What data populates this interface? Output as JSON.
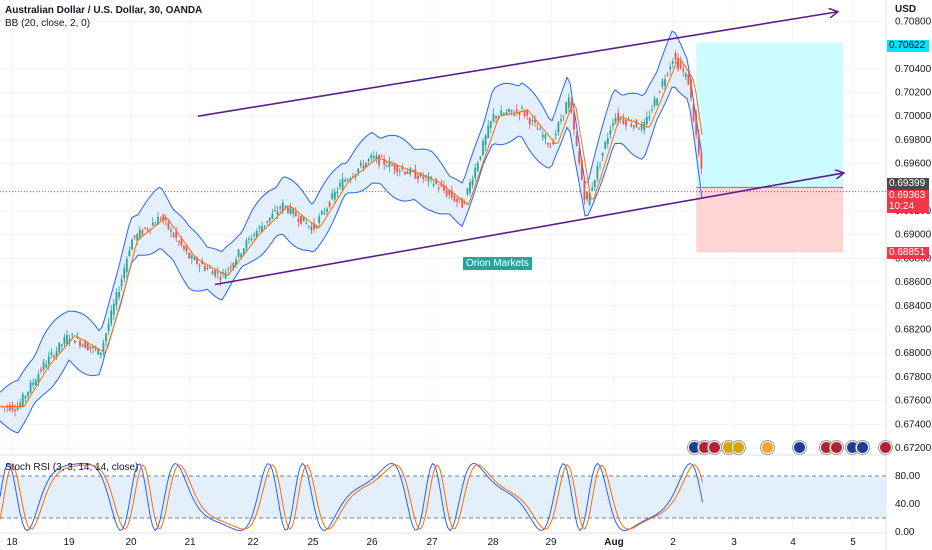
{
  "header": {
    "title": "Australian Dollar / U.S. Dollar, 30, OANDA",
    "indicator": "BB (20, close, 2, 0)"
  },
  "currency": "USD",
  "brand": "Orion Markets",
  "stoch_label": "Stoch RSI (3, 3, 14, 14, close)",
  "price_tags": {
    "target": "0.70622",
    "last": "0.69399",
    "current": "0.69363",
    "countdown": "10:24",
    "stop": "0.68851"
  },
  "colors": {
    "candle_up": "#26a69a",
    "candle_down": "#ef5350",
    "bb_line": "#2962ff",
    "bb_fill": "#e3f0fb",
    "basis": "#ff6d00",
    "channel": "#5b1e8c",
    "target_zone": "#ccfcff",
    "stop_zone": "#ffd4d4",
    "stoch_k": "#2962ff",
    "stoch_d": "#ff6d00"
  },
  "chart_data": {
    "type": "candlestick",
    "symbol": "AUDUSD",
    "timeframe": "30",
    "x_tick_labels": [
      "18",
      "19",
      "20",
      "21",
      "22",
      "25",
      "26",
      "27",
      "28",
      "29",
      "Aug",
      "2",
      "3",
      "4",
      "5"
    ],
    "y_tick_labels": [
      "0.70800",
      "0.70400",
      "0.70200",
      "0.70000",
      "0.69800",
      "0.69600",
      "0.69200",
      "0.69000",
      "0.68800",
      "0.68600",
      "0.68400",
      "0.68200",
      "0.68000",
      "0.67800",
      "0.67600",
      "0.67400",
      "0.67200"
    ],
    "ylim": [
      0.6715,
      0.7098
    ],
    "price_path": [
      {
        "date": "2024-07-18",
        "price": 0.6755
      },
      {
        "date": "2024-07-18T12",
        "price": 0.679
      },
      {
        "date": "2024-07-19",
        "price": 0.6815
      },
      {
        "date": "2024-07-19T12",
        "price": 0.68
      },
      {
        "date": "2024-07-19T20",
        "price": 0.686
      },
      {
        "date": "2024-07-20",
        "price": 0.6895
      },
      {
        "date": "2024-07-20T12",
        "price": 0.6915
      },
      {
        "date": "2024-07-21",
        "price": 0.688
      },
      {
        "date": "2024-07-21T12",
        "price": 0.6865
      },
      {
        "date": "2024-07-22",
        "price": 0.69
      },
      {
        "date": "2024-07-22T12",
        "price": 0.6925
      },
      {
        "date": "2024-07-25",
        "price": 0.6905
      },
      {
        "date": "2024-07-25T12",
        "price": 0.6945
      },
      {
        "date": "2024-07-26",
        "price": 0.6965
      },
      {
        "date": "2024-07-26T12",
        "price": 0.6955
      },
      {
        "date": "2024-07-27",
        "price": 0.6945
      },
      {
        "date": "2024-07-27T12",
        "price": 0.6925
      },
      {
        "date": "2024-07-28",
        "price": 0.7
      },
      {
        "date": "2024-07-28T12",
        "price": 0.7005
      },
      {
        "date": "2024-07-29",
        "price": 0.6975
      },
      {
        "date": "2024-07-29T12",
        "price": 0.7015
      },
      {
        "date": "2024-07-30",
        "price": 0.6925
      },
      {
        "date": "2024-08-01",
        "price": 0.7
      },
      {
        "date": "2024-08-01T12",
        "price": 0.699
      },
      {
        "date": "2024-08-02",
        "price": 0.705
      },
      {
        "date": "2024-08-02T06",
        "price": 0.703
      },
      {
        "date": "2024-08-02T12",
        "price": 0.694
      }
    ],
    "channel": {
      "upper": {
        "from": {
          "date": "2024-07-22",
          "price": 0.7
        },
        "to": {
          "date": "2024-08-05",
          "price": 0.7088
        }
      },
      "lower": {
        "from": {
          "date": "2024-07-21",
          "price": 0.6858
        },
        "to": {
          "date": "2024-08-05",
          "price": 0.6952
        }
      }
    },
    "position": {
      "entry": 0.69399,
      "target": 0.70622,
      "stop": 0.68851
    },
    "stoch_rsi": {
      "levels": [
        80,
        20
      ],
      "ticks": [
        "80.00",
        "40.00",
        "0.00"
      ],
      "range": [
        0,
        100
      ]
    }
  }
}
